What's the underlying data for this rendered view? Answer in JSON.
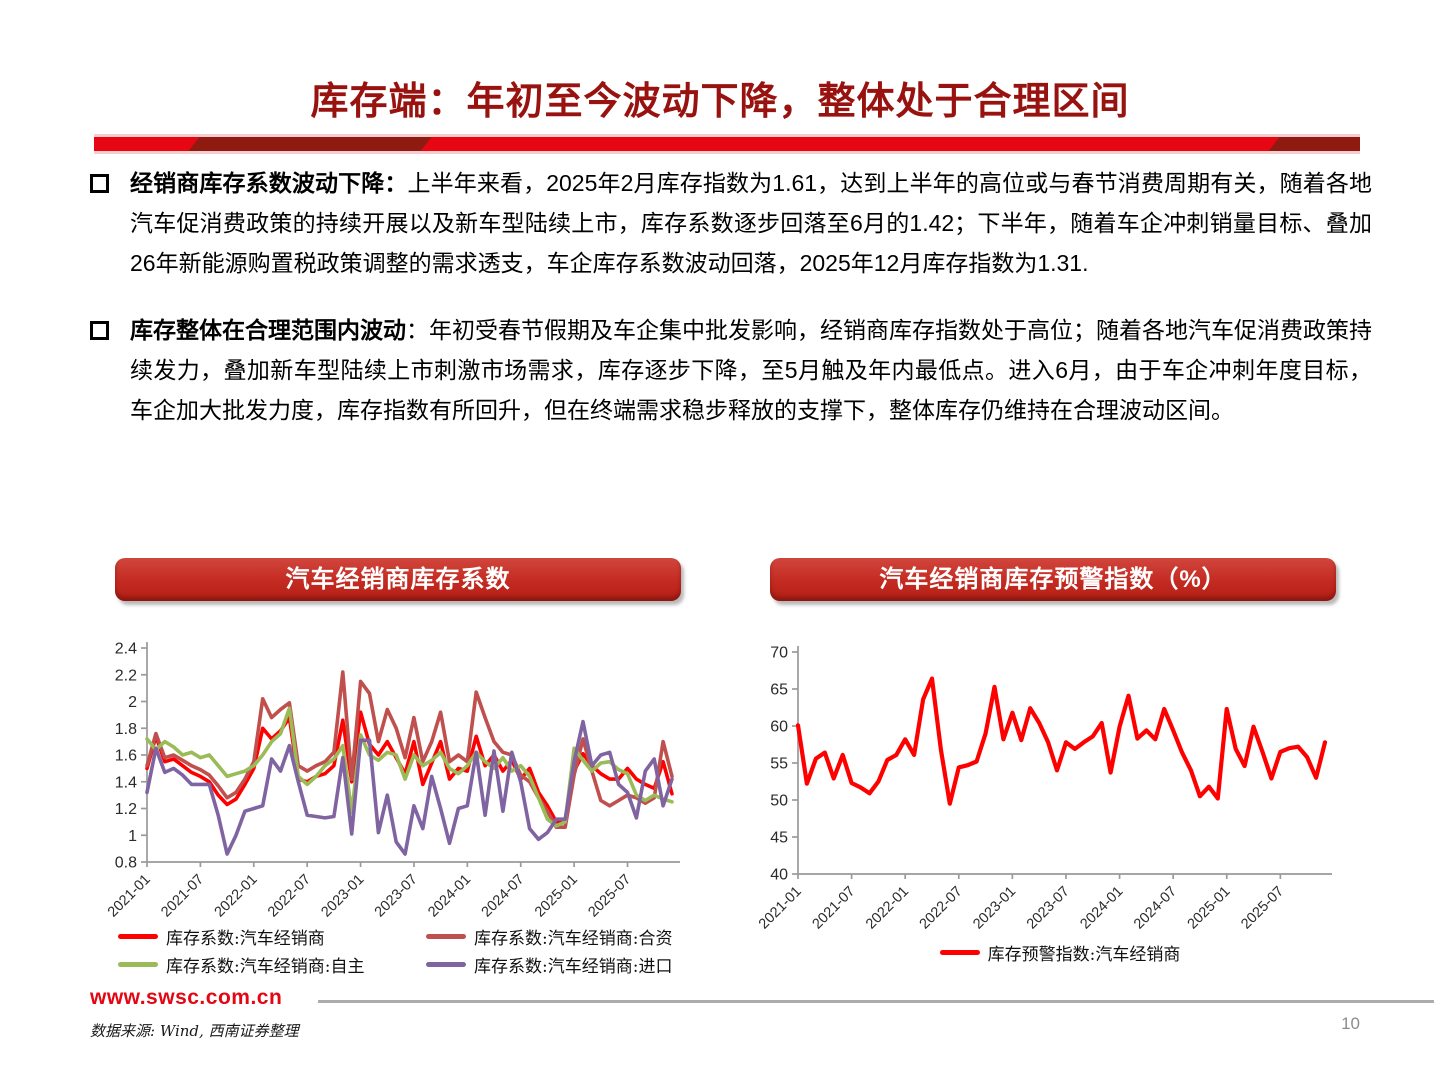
{
  "title": "库存端：年初至今波动下降，整体处于合理区间",
  "bullets": [
    {
      "lead": "经销商库存系数波动下降：",
      "text": "上半年来看，2025年2月库存指数为1.61，达到上半年的高位或与春节消费周期有关，随着各地汽车促消费政策的持续开展以及新车型陆续上市，库存系数逐步回落至6月的1.42；下半年，随着车企冲刺销量目标、叠加26年新能源购置税政策调整的需求透支，车企库存系数波动回落，2025年12月库存指数为1.31."
    },
    {
      "lead": "库存整体在合理范围内波动",
      "text": "：年初受春节假期及车企集中批发影响，经销商库存指数处于高位；随着各地汽车促消费政策持续发力，叠加新车型陆续上市刺激市场需求，库存逐步下降，至5月触及年内最低点。进入6月，由于车企冲刺年度目标，车企加大批发力度，库存指数有所回升，但在终端需求稳步释放的支撑下，整体库存仍维持在合理波动区间。"
    }
  ],
  "banners": [
    {
      "label": "汽车经销商库存系数"
    },
    {
      "label": "汽车经销商库存预警指数（%）"
    }
  ],
  "colors": {
    "title_red": "#98120F",
    "bar_bright_red": "#E60713",
    "bar_dark_red": "#8E1A10",
    "banner_red": "#C42A21",
    "series_red": "#FF0000",
    "series_brick": "#C0504D",
    "series_green": "#9BBB59",
    "series_purple": "#8064A2",
    "footer_red": "#E30613"
  },
  "footer": {
    "url": "www.swsc.com.cn",
    "source": "数据来源: Wind, 西南证券整理",
    "page": "10"
  },
  "chart_data": [
    {
      "type": "line",
      "title": "汽车经销商库存系数",
      "grid": false,
      "legend_position": "bottom",
      "ylim": [
        0.8,
        2.4
      ],
      "y_step": 0.2,
      "x": [
        "2021-01",
        "2021-02",
        "2021-03",
        "2021-04",
        "2021-05",
        "2021-06",
        "2021-07",
        "2021-08",
        "2021-09",
        "2021-10",
        "2021-11",
        "2021-12",
        "2022-01",
        "2022-02",
        "2022-03",
        "2022-04",
        "2022-05",
        "2022-06",
        "2022-07",
        "2022-08",
        "2022-09",
        "2022-10",
        "2022-11",
        "2022-12",
        "2023-01",
        "2023-02",
        "2023-03",
        "2023-04",
        "2023-05",
        "2023-06",
        "2023-07",
        "2023-08",
        "2023-09",
        "2023-10",
        "2023-11",
        "2023-12",
        "2024-01",
        "2024-02",
        "2024-03",
        "2024-04",
        "2024-05",
        "2024-06",
        "2024-07",
        "2024-08",
        "2024-09",
        "2024-10",
        "2024-11",
        "2024-12",
        "2025-01",
        "2025-02",
        "2025-03",
        "2025-04",
        "2025-05",
        "2025-06",
        "2025-07",
        "2025-08",
        "2025-09",
        "2025-10",
        "2025-11",
        "2025-12"
      ],
      "x_tick_labels": [
        "2021-01",
        "2021-07",
        "2022-01",
        "2022-07",
        "2023-01",
        "2023-07",
        "2024-01",
        "2024-07",
        "2025-01",
        "2025-07"
      ],
      "series": [
        {
          "name": "库存系数:汽车经销商",
          "color": "#FF0000",
          "width": 3.6,
          "values": [
            1.5,
            1.74,
            1.55,
            1.57,
            1.52,
            1.47,
            1.44,
            1.4,
            1.3,
            1.23,
            1.27,
            1.38,
            1.5,
            1.8,
            1.72,
            1.78,
            1.88,
            1.42,
            1.4,
            1.44,
            1.46,
            1.52,
            1.86,
            1.4,
            1.92,
            1.68,
            1.6,
            1.7,
            1.58,
            1.46,
            1.7,
            1.38,
            1.54,
            1.7,
            1.42,
            1.5,
            1.48,
            1.74,
            1.52,
            1.6,
            1.48,
            1.56,
            1.42,
            1.5,
            1.32,
            1.22,
            1.1,
            1.12,
            1.48,
            1.61,
            1.52,
            1.46,
            1.42,
            1.42,
            1.5,
            1.42,
            1.38,
            1.35,
            1.55,
            1.31
          ]
        },
        {
          "name": "库存系数:汽车经销商:合资",
          "color": "#C0504D",
          "width": 3.6,
          "values": [
            1.52,
            1.76,
            1.58,
            1.6,
            1.56,
            1.52,
            1.49,
            1.45,
            1.37,
            1.28,
            1.32,
            1.42,
            1.55,
            2.02,
            1.88,
            1.94,
            1.99,
            1.52,
            1.48,
            1.52,
            1.55,
            1.62,
            2.22,
            1.42,
            2.15,
            2.06,
            1.7,
            1.94,
            1.8,
            1.58,
            1.88,
            1.55,
            1.7,
            1.92,
            1.55,
            1.6,
            1.55,
            2.07,
            1.88,
            1.7,
            1.62,
            1.6,
            1.45,
            1.4,
            1.28,
            1.18,
            1.06,
            1.06,
            1.45,
            1.72,
            1.48,
            1.26,
            1.22,
            1.26,
            1.3,
            1.28,
            1.24,
            1.28,
            1.7,
            1.44
          ]
        },
        {
          "name": "库存系数:汽车经销商:自主",
          "color": "#9BBB59",
          "width": 3.6,
          "values": [
            1.72,
            1.64,
            1.7,
            1.66,
            1.6,
            1.62,
            1.58,
            1.6,
            1.52,
            1.44,
            1.46,
            1.48,
            1.52,
            1.6,
            1.7,
            1.76,
            1.95,
            1.44,
            1.38,
            1.44,
            1.52,
            1.57,
            1.67,
            1.17,
            1.75,
            1.6,
            1.56,
            1.62,
            1.6,
            1.42,
            1.6,
            1.52,
            1.56,
            1.62,
            1.5,
            1.46,
            1.52,
            1.62,
            1.55,
            1.5,
            1.58,
            1.48,
            1.52,
            1.44,
            1.28,
            1.12,
            1.07,
            1.1,
            1.65,
            1.56,
            1.48,
            1.54,
            1.55,
            1.49,
            1.46,
            1.3,
            1.26,
            1.3,
            1.27,
            1.25
          ]
        },
        {
          "name": "库存系数:汽车经销商:进口",
          "color": "#8064A2",
          "width": 3.6,
          "values": [
            1.32,
            1.65,
            1.47,
            1.5,
            1.45,
            1.38,
            1.38,
            1.38,
            1.15,
            0.86,
            1.0,
            1.18,
            1.2,
            1.22,
            1.57,
            1.48,
            1.67,
            1.4,
            1.15,
            1.14,
            1.13,
            1.14,
            1.58,
            1.01,
            1.71,
            1.71,
            1.02,
            1.3,
            0.95,
            0.86,
            1.22,
            1.05,
            1.44,
            1.2,
            0.94,
            1.2,
            1.22,
            1.62,
            1.15,
            1.63,
            1.18,
            1.62,
            1.4,
            1.05,
            0.97,
            1.02,
            1.12,
            1.12,
            1.55,
            1.85,
            1.52,
            1.6,
            1.62,
            1.38,
            1.32,
            1.13,
            1.48,
            1.57,
            1.22,
            1.42
          ]
        }
      ]
    },
    {
      "type": "line",
      "title": "汽车经销商库存预警指数（%）",
      "grid": false,
      "legend_position": "bottom",
      "ylim": [
        40,
        70
      ],
      "y_step": 5,
      "x": [
        "2021-01",
        "2021-02",
        "2021-03",
        "2021-04",
        "2021-05",
        "2021-06",
        "2021-07",
        "2021-08",
        "2021-09",
        "2021-10",
        "2021-11",
        "2021-12",
        "2022-01",
        "2022-02",
        "2022-03",
        "2022-04",
        "2022-05",
        "2022-06",
        "2022-07",
        "2022-08",
        "2022-09",
        "2022-10",
        "2022-11",
        "2022-12",
        "2023-01",
        "2023-02",
        "2023-03",
        "2023-04",
        "2023-05",
        "2023-06",
        "2023-07",
        "2023-08",
        "2023-09",
        "2023-10",
        "2023-11",
        "2023-12",
        "2024-01",
        "2024-02",
        "2024-03",
        "2024-04",
        "2024-05",
        "2024-06",
        "2024-07",
        "2024-08",
        "2024-09",
        "2024-10",
        "2024-11",
        "2024-12",
        "2025-01",
        "2025-02",
        "2025-03",
        "2025-04",
        "2025-05",
        "2025-06",
        "2025-07",
        "2025-08",
        "2025-09",
        "2025-10",
        "2025-11",
        "2025-12"
      ],
      "x_tick_labels": [
        "2021-01",
        "2021-07",
        "2022-01",
        "2022-07",
        "2023-01",
        "2023-07",
        "2024-01",
        "2024-07",
        "2025-01",
        "2025-07"
      ],
      "series": [
        {
          "name": "库存预警指数:汽车经销商",
          "color": "#FF0000",
          "width": 4.2,
          "values": [
            60.1,
            52.2,
            55.6,
            56.4,
            52.9,
            56.1,
            52.3,
            51.7,
            50.9,
            52.5,
            55.4,
            56.1,
            58.2,
            56.1,
            63.6,
            66.4,
            56.8,
            49.5,
            54.4,
            54.7,
            55.2,
            59.0,
            65.3,
            58.2,
            61.8,
            58.1,
            62.4,
            60.4,
            57.8,
            54.0,
            57.8,
            56.9,
            57.8,
            58.6,
            60.4,
            53.7,
            59.9,
            64.1,
            58.3,
            59.4,
            58.2,
            62.3,
            59.4,
            56.4,
            54.0,
            50.5,
            51.8,
            50.2,
            62.3,
            56.9,
            54.6,
            59.9,
            56.5,
            52.9,
            56.5,
            57.0,
            57.2,
            55.8,
            53.0,
            57.8
          ]
        }
      ]
    }
  ]
}
